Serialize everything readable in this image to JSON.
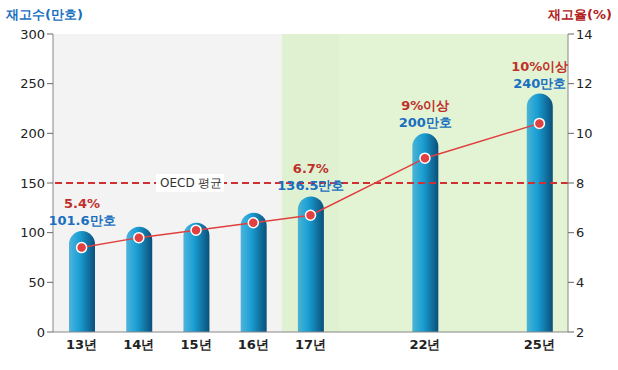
{
  "chart_data": {
    "type": "bar",
    "categories": [
      "13년",
      "14년",
      "15년",
      "16년",
      "17년",
      null,
      "22년",
      null,
      "25년"
    ],
    "series": [
      {
        "type": "bar",
        "color": "#1a9fd4",
        "values": [
          101.6,
          106,
          110,
          120,
          136.5,
          null,
          200,
          null,
          240
        ],
        "value_labels": [
          "101.6만호",
          null,
          null,
          null,
          "136.5만호",
          null,
          "200만호",
          null,
          "240만호"
        ]
      },
      {
        "type": "line",
        "axis": "y2",
        "color": "#e04040",
        "marker": "circle",
        "values": [
          5.4,
          5.8,
          6.1,
          6.4,
          6.7,
          null,
          9,
          null,
          10.4
        ],
        "value_labels": [
          "5.4%",
          null,
          null,
          null,
          "6.7%",
          null,
          "9%이상",
          null,
          "10%이상"
        ]
      }
    ],
    "y_label": "재고수(만호)",
    "y2_label": "재고율(%)",
    "ylim": [
      0,
      300
    ],
    "yticks": [
      0,
      50,
      100,
      150,
      200,
      250,
      300
    ],
    "y2lim": [
      2,
      14
    ],
    "y2ticks": [
      2,
      4,
      6,
      8,
      10,
      12,
      14
    ],
    "annotations": [
      {
        "text": "OECD 평균",
        "value": 8,
        "axis": "y2",
        "line_style": "dashed"
      }
    ],
    "data_labels": true,
    "grid": false
  }
}
